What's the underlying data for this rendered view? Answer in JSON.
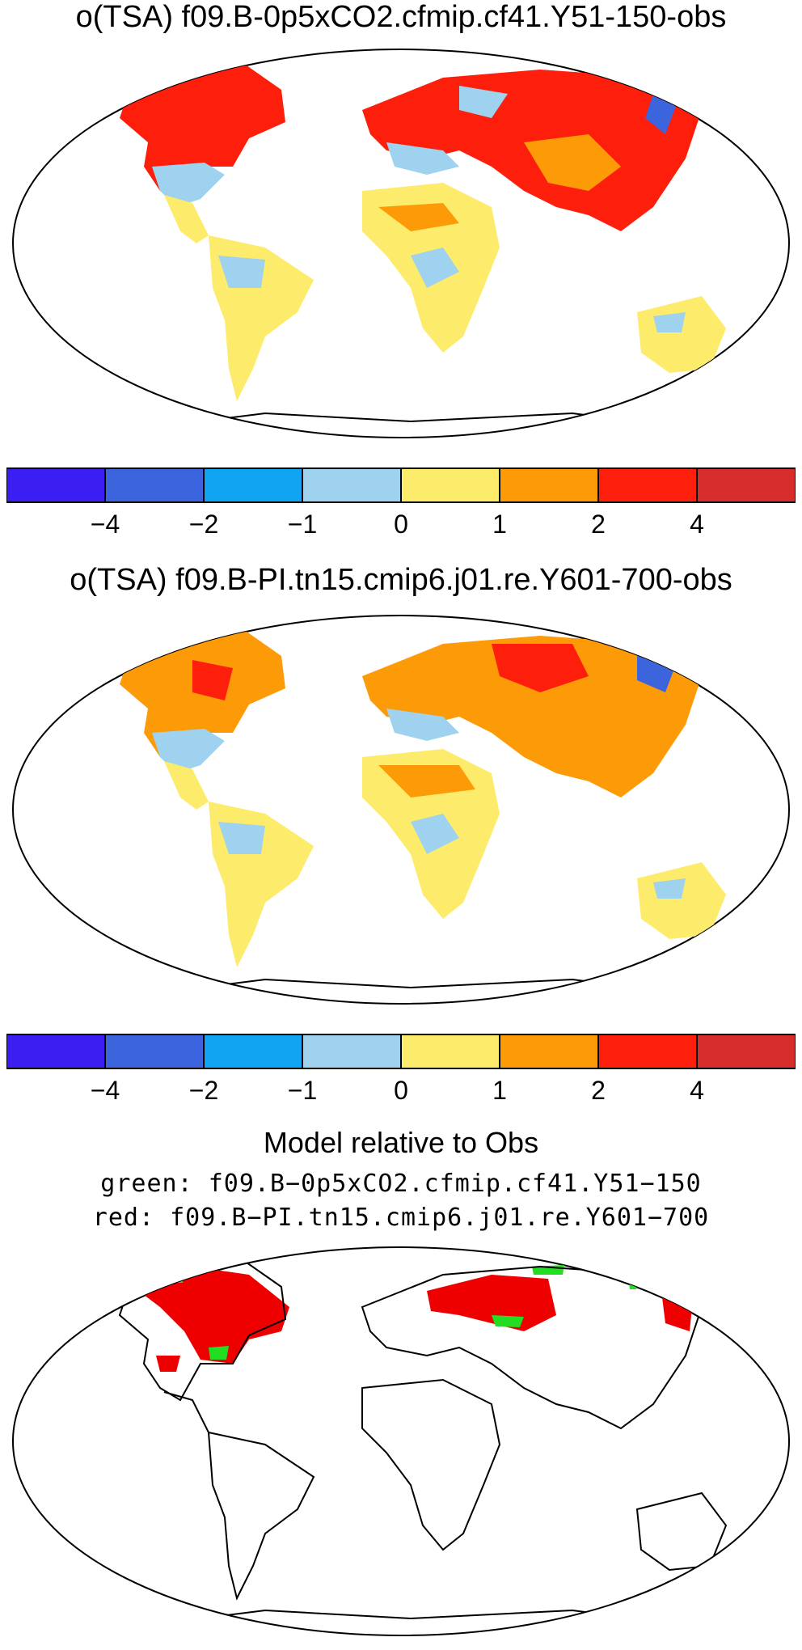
{
  "panels": [
    {
      "title": "o(TSA) f09.B-0p5xCO2.cfmip.cf41.Y51-150-obs",
      "colorbar_ticks": [
        "−4",
        "−2",
        "−1",
        "0",
        "1",
        "2",
        "4"
      ]
    },
    {
      "title": "o(TSA) f09.B-PI.tn15.cmip6.j01.re.Y601-700-obs",
      "colorbar_ticks": [
        "−4",
        "−2",
        "−1",
        "0",
        "1",
        "2",
        "4"
      ]
    },
    {
      "title": "Model relative to Obs",
      "legend_green": "green: f09.B−0p5xCO2.cfmip.cf41.Y51−150",
      "legend_red": "red: f09.B−PI.tn15.cmip6.j01.re.Y601−700"
    }
  ],
  "colorbar_colors": [
    "#3a1ef2",
    "#3c64dc",
    "#10a4f2",
    "#9ed2ee",
    "#fdec6c",
    "#fd9a08",
    "#fd1e0c",
    "#d62c2c"
  ],
  "highlight_colors": {
    "green": "#22dd22",
    "red": "#ee0000"
  }
}
